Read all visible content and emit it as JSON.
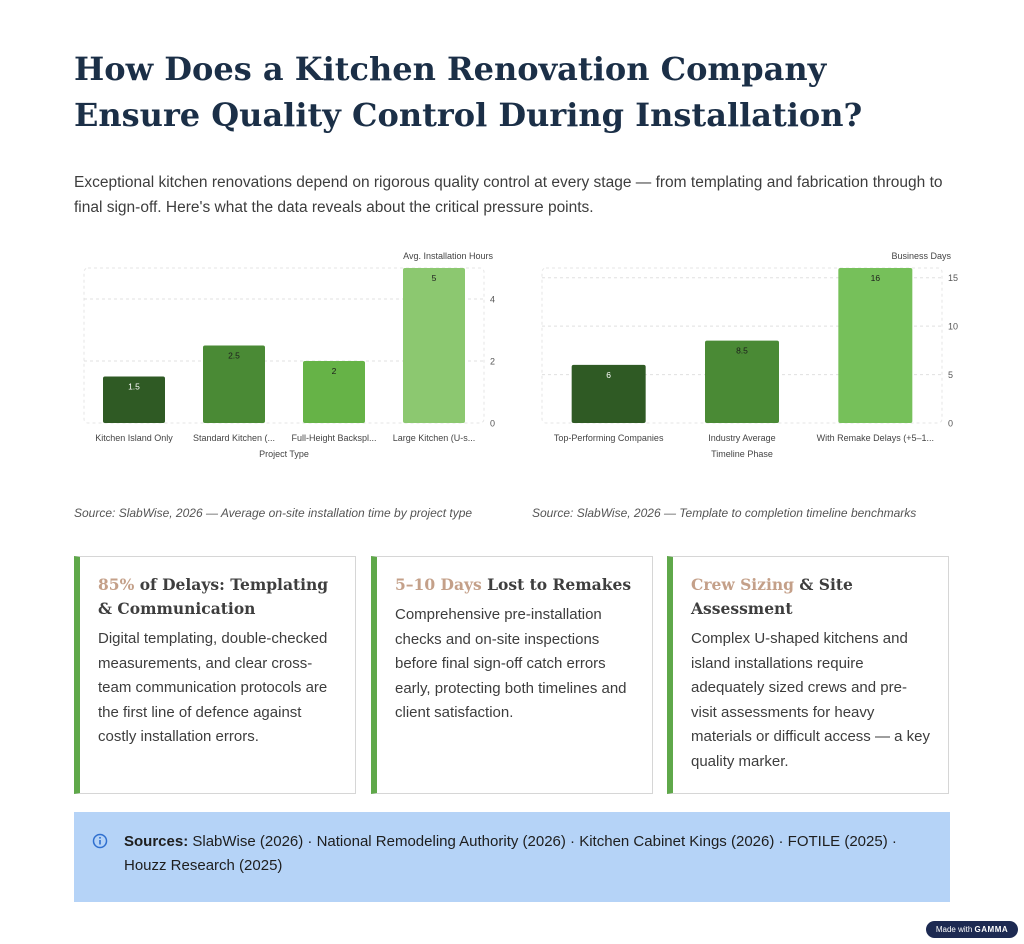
{
  "page": {
    "title": "How Does a Kitchen Renovation Company Ensure Quality Control During Installation?",
    "intro": "Exceptional kitchen renovations depend on rigorous quality control at every stage — from templating and fabrication through to final sign-off. Here's what the data reveals about the critical pressure points."
  },
  "chart_data": [
    {
      "type": "bar",
      "categories": [
        "Kitchen Island Only",
        "Standard Kitchen (...",
        "Full-Height Backspl...",
        "Large Kitchen (U-s..."
      ],
      "values": [
        1.5,
        2.5,
        2,
        5
      ],
      "data_labels": [
        "1.5",
        "2.5",
        "2",
        "5"
      ],
      "title": "",
      "xlabel": "Project Type",
      "ylabel": "Avg. Installation Hours",
      "ylim": [
        0,
        5
      ],
      "yticks": [
        "0",
        "2",
        "4"
      ],
      "ytick_values": [
        0,
        2,
        4
      ],
      "y_axis_side": "right",
      "grid": true,
      "colors": [
        "#2f5a24",
        "#4a8a35",
        "#66b347",
        "#8cc870"
      ]
    },
    {
      "type": "bar",
      "categories": [
        "Top-Performing Companies",
        "Industry Average",
        "With Remake Delays (+5–1..."
      ],
      "values": [
        6,
        8.5,
        16
      ],
      "data_labels": [
        "6",
        "8.5",
        "16"
      ],
      "title": "",
      "xlabel": "Timeline Phase",
      "ylabel": "Business Days",
      "ylim": [
        0,
        16
      ],
      "yticks": [
        "0",
        "5",
        "10",
        "15"
      ],
      "ytick_values": [
        0,
        5,
        10,
        15
      ],
      "y_axis_side": "right",
      "grid": true,
      "colors": [
        "#2f5a24",
        "#4a8a35",
        "#76c05a"
      ]
    }
  ],
  "sources": {
    "chart1": "Source: SlabWise, 2026 — Average on-site installation time by project type",
    "chart2": "Source: SlabWise, 2026 — Template to completion timeline benchmarks"
  },
  "cards": [
    {
      "highlight": "85%",
      "title_rest": " of Delays: Templating & Communication",
      "body": "Digital templating, double-checked measurements, and clear cross-team communication protocols are the first line of defence against costly installation errors."
    },
    {
      "highlight": "5–10 Days",
      "title_rest": " Lost to Remakes",
      "body": "Comprehensive pre-installation checks and on-site inspections before final sign-off catch errors early, protecting both timelines and client satisfaction."
    },
    {
      "highlight": "Crew Sizing",
      "title_rest": " & Site Assessment",
      "body": "Complex U-shaped kitchens and island installations require adequately sized crews and pre-visit assessments for heavy materials or difficult access — a key quality marker."
    }
  ],
  "footer_sources": {
    "label": "Sources:",
    "text": " SlabWise (2026) · National Remodeling Authority (2026) · Kitchen Cabinet Kings (2026) · FOTILE (2025) · Houzz Research (2025)"
  },
  "badge": {
    "prefix": "Made with ",
    "brand": "GAMMA"
  },
  "colors": {
    "title": "#1b2f47",
    "accent_border": "#5fa84a",
    "highlight": "#c4a089",
    "sources_bg": "#b5d3f7",
    "info_icon": "#2f6fcf"
  }
}
